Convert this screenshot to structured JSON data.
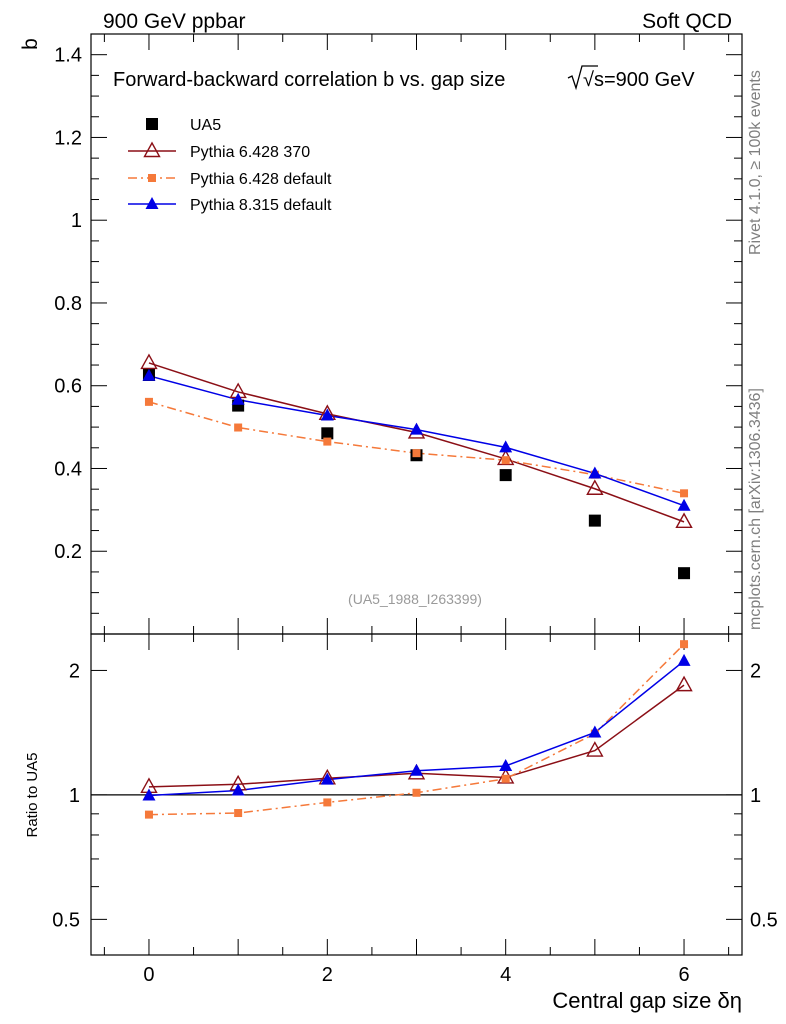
{
  "header": {
    "left_label": "900 GeV ppbar",
    "right_label": "Soft QCD"
  },
  "side_labels": {
    "rivet": "Rivet 4.1.0, ≥ 100k events",
    "mcplots": "mcplots.cern.ch [arXiv:1306.3436]"
  },
  "chart_data": [
    {
      "type": "scatter",
      "panel": "main",
      "title": "Forward-backward correlation b  vs. gap size",
      "title_energy": "√s=900 GeV",
      "ylabel": "b",
      "xlabel": "Central gap size δη",
      "xlim": [
        -0.65,
        6.65
      ],
      "ylim": [
        0,
        1.45
      ],
      "x": [
        0,
        1,
        2,
        3,
        4,
        5,
        6
      ],
      "xticks": [
        0,
        2,
        4,
        6
      ],
      "yticks": [
        0.2,
        0.4,
        0.6,
        0.8,
        1,
        1.2,
        1.4
      ],
      "ytick_labels": [
        "0.2",
        "0.4",
        "0.6",
        "0.8",
        "1",
        "1.2",
        "1.4"
      ],
      "partial_tick_label": "0",
      "watermark": "(UA5_1988_I263399)",
      "series": [
        {
          "name": "UA5",
          "color": "#000000",
          "marker": "square",
          "line": "none",
          "values": [
            0.626,
            0.552,
            0.485,
            0.432,
            0.384,
            0.274,
            0.147
          ]
        },
        {
          "name": "Pythia 6.428 370",
          "color": "#8b0f16",
          "marker": "open-triangle",
          "line": "solid",
          "values": [
            0.655,
            0.585,
            0.532,
            0.487,
            0.423,
            0.351,
            0.271
          ]
        },
        {
          "name": "Pythia 6.428 default",
          "color": "#f5793a",
          "marker": "small-square",
          "line": "dashdot",
          "values": [
            0.561,
            0.499,
            0.465,
            0.437,
            0.42,
            0.385,
            0.34
          ]
        },
        {
          "name": "Pythia 8.315 default",
          "color": "#0000e6",
          "marker": "triangle",
          "line": "solid",
          "values": [
            0.624,
            0.566,
            0.528,
            0.494,
            0.451,
            0.388,
            0.31
          ]
        }
      ]
    },
    {
      "type": "line",
      "panel": "ratio",
      "ylabel": "Ratio to UA5",
      "xlabel": "Central gap size δη",
      "xlim": [
        -0.65,
        6.65
      ],
      "ylim": [
        0.41,
        2.45
      ],
      "yscale": "log",
      "x": [
        0,
        1,
        2,
        3,
        4,
        5,
        6
      ],
      "xticks": [
        0,
        2,
        4,
        6
      ],
      "xtick_labels": [
        "0",
        "2",
        "4",
        "6"
      ],
      "yticks": [
        0.5,
        1,
        2
      ],
      "ytick_labels": [
        "0.5",
        "1",
        "2"
      ],
      "reference_line": 1,
      "series": [
        {
          "name": "Pythia 6.428 370",
          "color": "#8b0f16",
          "marker": "open-triangle",
          "line": "solid",
          "values": [
            1.046,
            1.061,
            1.097,
            1.128,
            1.102,
            1.28,
            1.843
          ]
        },
        {
          "name": "Pythia 6.428 default",
          "color": "#f5793a",
          "marker": "small-square",
          "line": "dashdot",
          "values": [
            0.896,
            0.904,
            0.959,
            1.012,
            1.094,
            1.407,
            2.315
          ]
        },
        {
          "name": "Pythia 8.315 default",
          "color": "#0000e6",
          "marker": "triangle",
          "line": "solid",
          "values": [
            0.997,
            1.025,
            1.089,
            1.144,
            1.175,
            1.416,
            2.109
          ]
        }
      ]
    }
  ]
}
